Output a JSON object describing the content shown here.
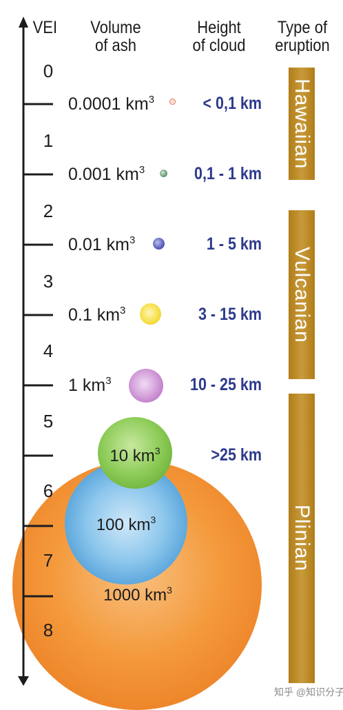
{
  "headers": {
    "vei": "VEI",
    "volume_line1": "Volume",
    "volume_line2": "of ash",
    "height_line1": "Height",
    "height_line2": "of cloud",
    "type_line1": "Type of",
    "type_line2": "eruption"
  },
  "vei_levels": [
    "0",
    "1",
    "2",
    "3",
    "4",
    "5",
    "6",
    "7",
    "8"
  ],
  "rows": [
    {
      "volume": "0.0001 km",
      "height": "< 0,1 km",
      "dot_color": "#e07a5f"
    },
    {
      "volume": "0.001 km",
      "height": "0,1 - 1 km",
      "dot_color": "#5a8f6a"
    },
    {
      "volume": "0.01 km",
      "height": "1 - 5 km",
      "dot_color": "#4a4fb0"
    },
    {
      "volume": "0.1 km",
      "height": "3 - 15 km",
      "dot_color": "#f2d21c"
    },
    {
      "volume": "1 km",
      "height": "10 - 25 km",
      "dot_color": "#b868c2"
    },
    {
      "volume": "",
      "height": ">25 km",
      "dot_color": "#6cbb3c"
    }
  ],
  "unit_sup": "3",
  "big_balls": {
    "ten": "10 km",
    "hundred": "100 km",
    "thousand": "1000 km",
    "colors": {
      "ten": "#6cbb3c",
      "hundred": "#3a9ad9",
      "thousand": "#f08a2a"
    }
  },
  "eruption_types": [
    "Hawaiian",
    "Vulcanian",
    "Plinian"
  ],
  "band_color": "#b8862a",
  "watermark": "知乎 @知识分子"
}
